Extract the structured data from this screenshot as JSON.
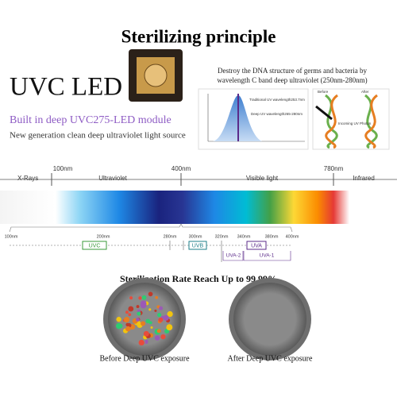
{
  "header": {
    "title": "Sterilizing principle"
  },
  "product": {
    "name": "UVC LED",
    "module": "Built in deep UVC275-LED module",
    "tagline": "New generation clean deep ultraviolet light source"
  },
  "principle": {
    "lines": [
      "Destroy the DNA structure of germs and bacteria by",
      "wavelength C band deep ultraviolet (250nm-280nm)"
    ],
    "chart_labels": [
      "Traditional UV wavelength253.7nm",
      "Deep UV wavelength265-280nm"
    ],
    "dna_labels": [
      "Before",
      "After",
      "Incoming UV Photon"
    ]
  },
  "spectrum": {
    "regions": [
      "X-Rays",
      "Ultraviolet",
      "Visible light",
      "Infrared"
    ],
    "boundaries": [
      "100nm",
      "400nm",
      "780nm"
    ]
  },
  "uv_scale": {
    "ticks": [
      "100nm",
      "200nm",
      "280nm",
      "300nm",
      "320nm",
      "340nm",
      "380nm",
      "400nm"
    ],
    "bands": [
      "UVC",
      "UVB",
      "UVA",
      "UVA-2",
      "UVA-1"
    ]
  },
  "sterilization": {
    "headline": "Sterilization Rate Reach Up to 99.99%",
    "before": "Before Deep UVC exposure",
    "after": "After Deep UVC exposure"
  }
}
